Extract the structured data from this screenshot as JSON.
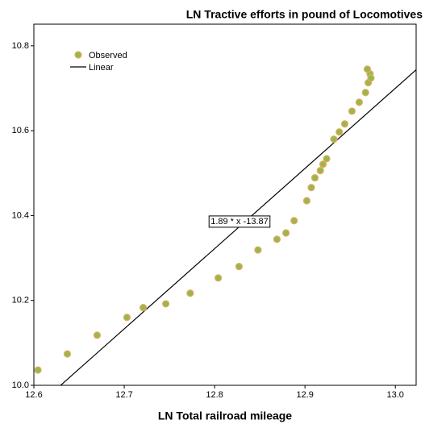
{
  "chart_data": {
    "type": "scatter",
    "title": "LN Tractive efforts in pound of Locomotives",
    "x_label": "LN Total railroad mileage",
    "xlim": [
      12.6,
      13.023
    ],
    "ylim": [
      10.0,
      10.851
    ],
    "xticks": [
      12.6,
      12.7,
      12.8,
      12.9,
      {
        "value": 13.0,
        "label": "13.0"
      }
    ],
    "yticks": [
      {
        "value": 10.0,
        "label": "10.0"
      },
      10.2,
      10.4,
      10.6,
      10.8
    ],
    "legend": "top-left",
    "series": [
      {
        "name": "Observed",
        "color": "#8fbc4f",
        "edge_color": "#f4a460",
        "x": [
          12.6045,
          12.637,
          12.67,
          12.703,
          12.721,
          12.746,
          12.773,
          12.804,
          12.827,
          12.848,
          12.869,
          12.879,
          12.888,
          12.902,
          12.907,
          12.911,
          12.917,
          12.92,
          12.924,
          12.932,
          12.938,
          12.944,
          12.952,
          12.96,
          12.967,
          12.97,
          12.972,
          12.973,
          12.969
        ],
        "values": [
          10.036,
          10.074,
          10.118,
          10.16,
          10.183,
          10.192,
          10.217,
          10.253,
          10.28,
          10.319,
          10.344,
          10.359,
          10.388,
          10.435,
          10.466,
          10.489,
          10.506,
          10.521,
          10.534,
          10.58,
          10.597,
          10.616,
          10.646,
          10.667,
          10.69,
          10.713,
          10.734,
          10.724,
          10.745
        ]
      }
    ],
    "fit": {
      "name": "Linear",
      "color": "#000000",
      "slope": 1.89,
      "intercept": -13.87,
      "label": "1.89 * x -13.87"
    }
  }
}
